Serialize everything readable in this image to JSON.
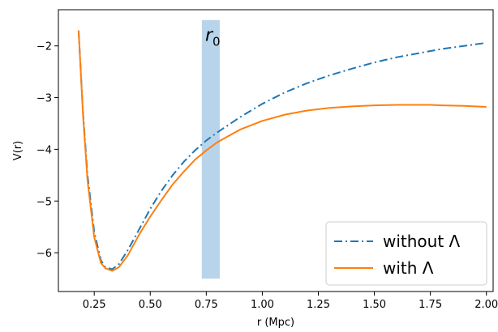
{
  "chart_data": {
    "type": "line",
    "title": "",
    "xlabel": "r (Mpc)",
    "ylabel": "V(r)",
    "xlim": [
      0.09,
      2.03
    ],
    "ylim": [
      -6.75,
      -1.3
    ],
    "xticks": [
      0.25,
      0.5,
      0.75,
      1.0,
      1.25,
      1.5,
      1.75,
      2.0
    ],
    "xtick_labels": [
      "0.25",
      "0.50",
      "0.75",
      "1.00",
      "1.25",
      "1.50",
      "1.75",
      "2.00"
    ],
    "yticks": [
      -6,
      -5,
      -4,
      -3,
      -2
    ],
    "ytick_labels": [
      "−6",
      "−5",
      "−4",
      "−3",
      "−2"
    ],
    "grid": false,
    "legend_position": "bottom-right",
    "annotation": {
      "text": "r",
      "subscript": "0",
      "x": 0.745,
      "y": -1.9
    },
    "band": {
      "x_from": 0.73,
      "x_to": 0.81,
      "y_from": -6.5,
      "y_to": -1.5,
      "color": "#b8d4ea"
    },
    "series": [
      {
        "name": "without Λ",
        "color": "#1f77b4",
        "style": "dashdot",
        "x": [
          0.18,
          0.2,
          0.22,
          0.25,
          0.28,
          0.3,
          0.33,
          0.36,
          0.4,
          0.45,
          0.5,
          0.55,
          0.6,
          0.65,
          0.7,
          0.75,
          0.8,
          0.9,
          1.0,
          1.1,
          1.2,
          1.3,
          1.4,
          1.5,
          1.6,
          1.7,
          1.8,
          1.9,
          2.0
        ],
        "y": [
          -1.7,
          -3.3,
          -4.5,
          -5.6,
          -6.15,
          -6.28,
          -6.32,
          -6.22,
          -5.95,
          -5.55,
          -5.15,
          -4.8,
          -4.5,
          -4.24,
          -4.02,
          -3.83,
          -3.67,
          -3.38,
          -3.12,
          -2.9,
          -2.72,
          -2.57,
          -2.44,
          -2.32,
          -2.22,
          -2.14,
          -2.06,
          -2.0,
          -1.94
        ]
      },
      {
        "name": "with Λ",
        "color": "#ff7f0e",
        "style": "solid",
        "x": [
          0.18,
          0.2,
          0.22,
          0.25,
          0.28,
          0.3,
          0.33,
          0.36,
          0.4,
          0.45,
          0.5,
          0.55,
          0.6,
          0.65,
          0.7,
          0.75,
          0.8,
          0.9,
          1.0,
          1.1,
          1.2,
          1.3,
          1.4,
          1.5,
          1.6,
          1.7,
          1.75,
          1.8,
          1.9,
          2.0
        ],
        "y": [
          -1.7,
          -3.35,
          -4.6,
          -5.7,
          -6.2,
          -6.3,
          -6.35,
          -6.28,
          -6.05,
          -5.65,
          -5.3,
          -4.98,
          -4.68,
          -4.43,
          -4.2,
          -4.02,
          -3.86,
          -3.62,
          -3.45,
          -3.33,
          -3.25,
          -3.2,
          -3.17,
          -3.15,
          -3.14,
          -3.14,
          -3.14,
          -3.15,
          -3.16,
          -3.18
        ]
      }
    ]
  }
}
